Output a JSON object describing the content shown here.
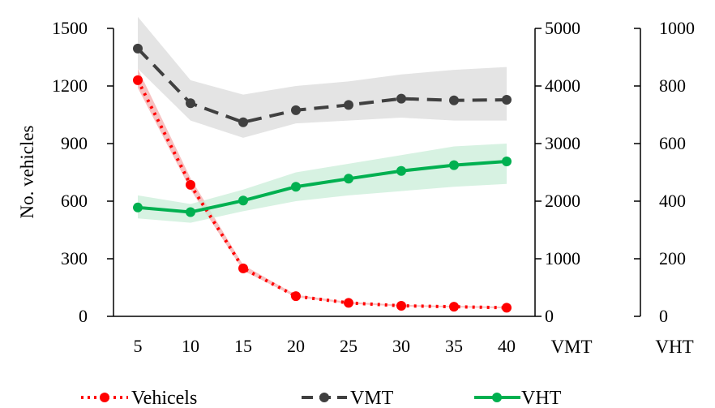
{
  "chart_data": {
    "type": "line",
    "title": "",
    "x": [
      5,
      10,
      15,
      20,
      25,
      30,
      35,
      40
    ],
    "x_tick_labels": [
      "5",
      "10",
      "15",
      "20",
      "25",
      "30",
      "35",
      "40"
    ],
    "axes": {
      "left": {
        "label": "No. vehicles",
        "range": [
          0,
          1500
        ],
        "ticks": [
          "0",
          "300",
          "600",
          "900",
          "1200",
          "1500"
        ],
        "tick_values": [
          0,
          300,
          600,
          900,
          1200,
          1500
        ]
      },
      "right1": {
        "label": "VMT",
        "range": [
          0,
          5000
        ],
        "ticks": [
          "0",
          "1000",
          "2000",
          "3000",
          "4000",
          "5000"
        ],
        "tick_values": [
          0,
          1000,
          2000,
          3000,
          4000,
          5000
        ]
      },
      "right2": {
        "label": "VHT",
        "range": [
          0,
          1000
        ],
        "ticks": [
          "0",
          "200",
          "400",
          "600",
          "800",
          "1000"
        ],
        "tick_values": [
          0,
          200,
          400,
          600,
          800,
          1000
        ]
      }
    },
    "series": [
      {
        "name": "Vehicels",
        "axis": "left",
        "color": "#ff0000",
        "band_color": "#f4a6a6",
        "style": "dotted",
        "values": [
          1230,
          685,
          250,
          105,
          70,
          55,
          50,
          45
        ],
        "band_low": [
          1190,
          660,
          238,
          100,
          66,
          52,
          47,
          42
        ],
        "band_high": [
          1290,
          720,
          268,
          112,
          75,
          60,
          54,
          50
        ]
      },
      {
        "name": "VMT",
        "axis": "right1",
        "color": "#404040",
        "band_color": "#d9d9d9",
        "style": "dashed",
        "values": [
          4650,
          3700,
          3370,
          3580,
          3670,
          3780,
          3750,
          3760
        ],
        "band_low": [
          4300,
          3400,
          3100,
          3350,
          3400,
          3450,
          3400,
          3400
        ],
        "band_high": [
          5200,
          4100,
          3850,
          4000,
          4080,
          4200,
          4280,
          4330
        ]
      },
      {
        "name": "VHT",
        "axis": "right2",
        "color": "#00b050",
        "band_color": "#c6ecd6",
        "style": "solid",
        "values": [
          378,
          362,
          402,
          450,
          478,
          505,
          525,
          538
        ],
        "band_low": [
          340,
          325,
          365,
          400,
          420,
          435,
          450,
          460
        ],
        "band_high": [
          420,
          390,
          440,
          500,
          530,
          560,
          590,
          600
        ]
      }
    ],
    "legend_position": "bottom",
    "grid": false
  }
}
